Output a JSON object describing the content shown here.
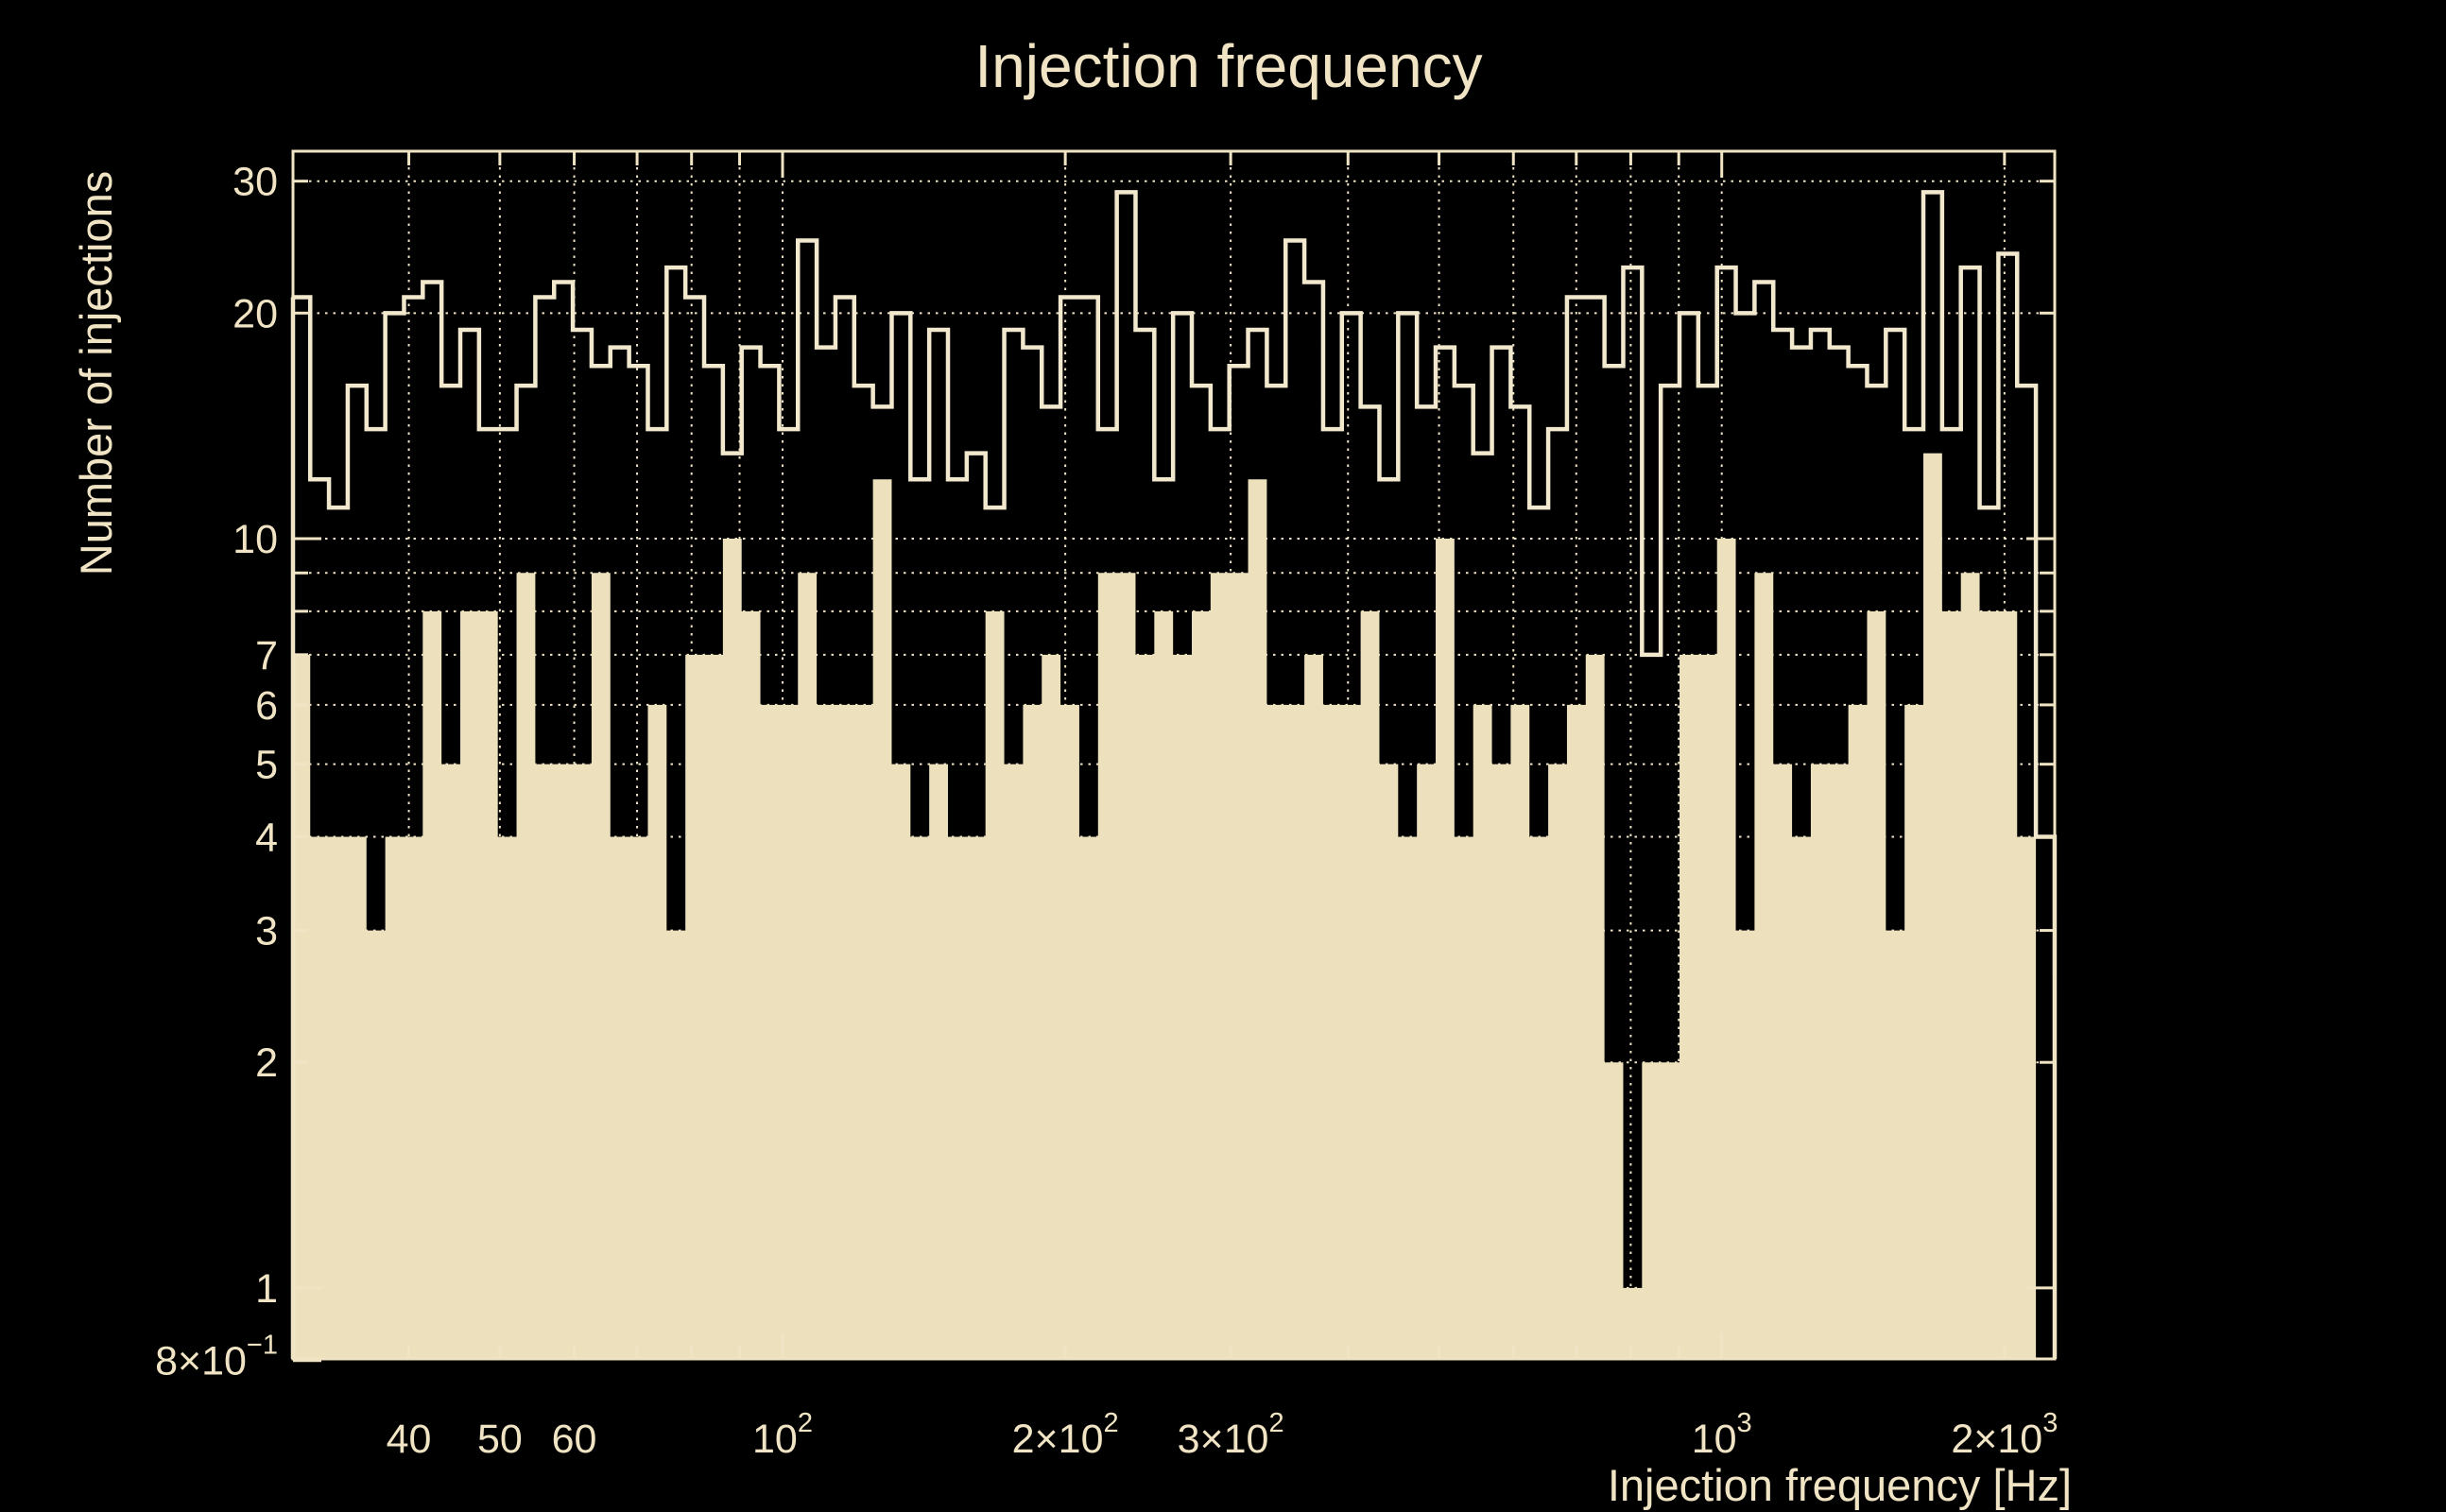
{
  "chart_data": {
    "type": "histogram",
    "title": "Injection frequency",
    "xlabel": "Injection frequency [Hz]",
    "ylabel": "Number of injections",
    "x_scale": "log",
    "y_scale": "log",
    "x_range_hz": [
      30,
      2262
    ],
    "y_range": [
      0.8,
      33.5
    ],
    "grid": "dotted",
    "legend": "none",
    "bins": {
      "n": 94,
      "log10_start": 1.4771,
      "log10_step": 0.019972
    },
    "series": [
      {
        "name": "all-injections-outline",
        "style": "step-outline",
        "values": [
          21,
          12,
          11,
          16,
          14,
          20,
          21,
          22,
          16,
          19,
          14,
          14,
          16,
          21,
          22,
          19,
          17,
          18,
          17,
          14,
          23,
          21,
          17,
          13,
          18,
          17,
          14,
          25,
          18,
          21,
          16,
          15,
          20,
          12,
          19,
          12,
          13,
          11,
          19,
          18,
          15,
          21,
          21,
          14,
          29,
          19,
          12,
          20,
          16,
          14,
          17,
          19,
          16,
          25,
          22,
          14,
          20,
          15,
          12,
          20,
          15,
          18,
          16,
          13,
          18,
          15,
          11,
          14,
          21,
          21,
          17,
          23,
          7,
          16,
          20,
          16,
          23,
          20,
          22,
          19,
          18,
          19,
          18,
          17,
          16,
          19,
          14,
          29,
          14,
          23,
          11,
          24,
          16,
          4
        ]
      },
      {
        "name": "subset-injections-filled",
        "style": "filled",
        "values": [
          7,
          4,
          4,
          4,
          3,
          4,
          4,
          8,
          5,
          8,
          8,
          4,
          9,
          5,
          5,
          5,
          9,
          4,
          4,
          6,
          3,
          7,
          7,
          10,
          8,
          6,
          6,
          9,
          6,
          6,
          6,
          12,
          5,
          4,
          5,
          4,
          4,
          8,
          5,
          6,
          7,
          6,
          4,
          9,
          9,
          7,
          8,
          7,
          8,
          9,
          9,
          12,
          6,
          6,
          7,
          6,
          6,
          8,
          5,
          4,
          5,
          10,
          4,
          6,
          5,
          6,
          4,
          5,
          6,
          7,
          2,
          1,
          2,
          2,
          7,
          7,
          10,
          3,
          9,
          5,
          4,
          5,
          5,
          6,
          8,
          3,
          6,
          13,
          8,
          9,
          8,
          8,
          4,
          0
        ]
      }
    ],
    "x_axis": {
      "tick_labels": [
        {
          "v": 40,
          "base": "40",
          "sup": ""
        },
        {
          "v": 50,
          "base": "50",
          "sup": ""
        },
        {
          "v": 60,
          "base": "60",
          "sup": ""
        },
        {
          "v": 100,
          "base": "10",
          "sup": "2"
        },
        {
          "v": 200,
          "base": "2×10",
          "sup": "2"
        },
        {
          "v": 300,
          "base": "3×10",
          "sup": "2"
        },
        {
          "v": 1000,
          "base": "10",
          "sup": "3"
        },
        {
          "v": 2000,
          "base": "2×10",
          "sup": "3"
        }
      ],
      "gridline_values": [
        40,
        50,
        60,
        70,
        80,
        90,
        100,
        200,
        300,
        400,
        500,
        600,
        700,
        800,
        900,
        1000,
        2000
      ],
      "major_values": [
        100,
        1000
      ]
    },
    "y_axis": {
      "tick_labels": [
        {
          "v": 30,
          "base": "30",
          "sup": ""
        },
        {
          "v": 20,
          "base": "20",
          "sup": ""
        },
        {
          "v": 10,
          "base": "10",
          "sup": ""
        },
        {
          "v": 7,
          "base": "7",
          "sup": ""
        },
        {
          "v": 6,
          "base": "6",
          "sup": ""
        },
        {
          "v": 5,
          "base": "5",
          "sup": ""
        },
        {
          "v": 4,
          "base": "4",
          "sup": ""
        },
        {
          "v": 3,
          "base": "3",
          "sup": ""
        },
        {
          "v": 2,
          "base": "2",
          "sup": ""
        },
        {
          "v": 1,
          "base": "1",
          "sup": ""
        },
        {
          "v": 0.8,
          "base": "8×10",
          "sup": "−1"
        }
      ],
      "gridline_values": [
        1,
        2,
        3,
        4,
        5,
        6,
        7,
        8,
        9,
        10,
        20,
        30
      ],
      "major_values": [
        1,
        10
      ]
    },
    "colors": {
      "background": "#000000",
      "foreground": "#F0E4C4",
      "fill": "#EDE0BD",
      "outline": "#F2E8CD"
    }
  }
}
